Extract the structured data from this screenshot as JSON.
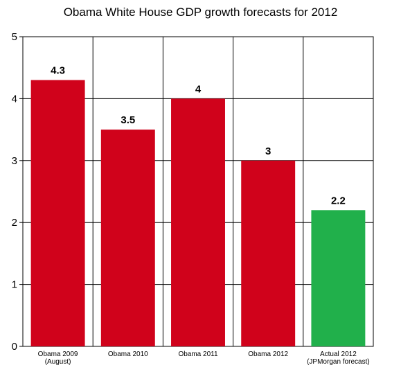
{
  "chart_data": {
    "type": "bar",
    "title": "Obama White House GDP growth forecasts for 2012",
    "categories": [
      [
        "Obama 2009",
        "(August)"
      ],
      [
        "Obama 2010"
      ],
      [
        "Obama 2011"
      ],
      [
        "Obama 2012"
      ],
      [
        "Actual 2012",
        "(JPMorgan forecast)"
      ]
    ],
    "values": [
      4.3,
      3.5,
      4,
      3,
      2.2
    ],
    "data_labels": [
      "4.3",
      "3.5",
      "4",
      "3",
      "2.2"
    ],
    "bar_colors": [
      "#d0021b",
      "#d0021b",
      "#d0021b",
      "#d0021b",
      "#21b04b"
    ],
    "ylim": [
      0,
      5
    ],
    "yticks": [
      0,
      1,
      2,
      3,
      4,
      5
    ],
    "xlabel": "",
    "ylabel": "",
    "grid": true,
    "legend": "none"
  }
}
